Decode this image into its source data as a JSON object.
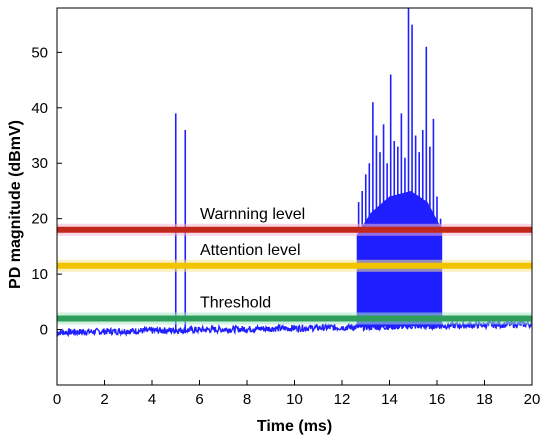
{
  "chart_data": {
    "type": "line",
    "title": "",
    "xlabel": "Time (ms)",
    "ylabel": "PD magnitude (dBmV)",
    "xlim": [
      0,
      20
    ],
    "ylim": [
      -10,
      58
    ],
    "x_ticks": [
      0,
      2,
      4,
      6,
      8,
      10,
      12,
      14,
      16,
      18,
      20
    ],
    "y_ticks": [
      0,
      10,
      20,
      30,
      40,
      50
    ],
    "grid": false,
    "series": [
      {
        "color": "#1f1fff",
        "baseline": {
          "x": [
            0,
            20
          ],
          "y": [
            -0.5,
            1.0
          ]
        },
        "pulses": [
          {
            "x": 5.0,
            "y": 39
          },
          {
            "x": 5.4,
            "y": 36
          },
          {
            "x": 12.7,
            "y": 23
          },
          {
            "x": 12.85,
            "y": 25
          },
          {
            "x": 13.0,
            "y": 28
          },
          {
            "x": 13.15,
            "y": 30
          },
          {
            "x": 13.3,
            "y": 41
          },
          {
            "x": 13.45,
            "y": 35
          },
          {
            "x": 13.6,
            "y": 32
          },
          {
            "x": 13.75,
            "y": 37
          },
          {
            "x": 13.9,
            "y": 30
          },
          {
            "x": 14.05,
            "y": 46
          },
          {
            "x": 14.2,
            "y": 34
          },
          {
            "x": 14.35,
            "y": 33
          },
          {
            "x": 14.5,
            "y": 39
          },
          {
            "x": 14.65,
            "y": 31
          },
          {
            "x": 14.8,
            "y": 58
          },
          {
            "x": 14.95,
            "y": 55
          },
          {
            "x": 15.1,
            "y": 35
          },
          {
            "x": 15.25,
            "y": 32
          },
          {
            "x": 15.4,
            "y": 36
          },
          {
            "x": 15.55,
            "y": 51
          },
          {
            "x": 15.7,
            "y": 33
          },
          {
            "x": 15.85,
            "y": 38
          },
          {
            "x": 16.0,
            "y": 24
          },
          {
            "x": 16.15,
            "y": 20
          }
        ]
      }
    ],
    "levels": [
      {
        "label": "Warnning level",
        "y": 18,
        "color": "#c0281c",
        "glow": "#f6b3cf"
      },
      {
        "label": "Attention level",
        "y": 11.5,
        "color": "#f2c400",
        "glow": "#f7e38a"
      },
      {
        "label": "Threshold",
        "y": 2,
        "color": "#2f9e5a",
        "glow": "#a8e6c6"
      }
    ]
  }
}
